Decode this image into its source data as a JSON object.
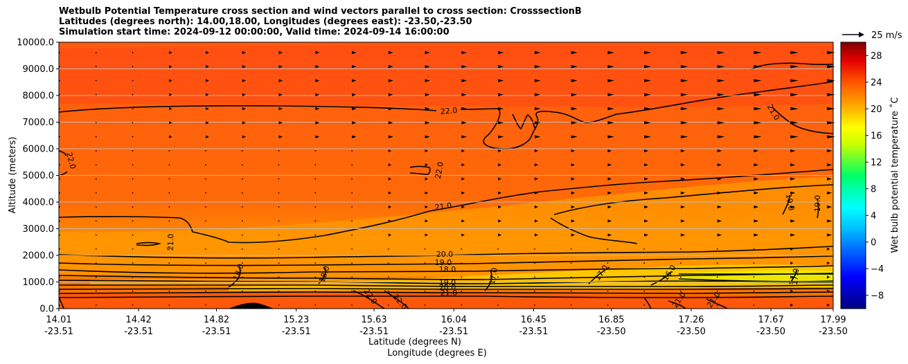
{
  "chart_data": {
    "type": "contour",
    "title": [
      "Wetbulb Potential Temperature cross section and wind vectors parallel to cross section: CrosssectionB",
      "Latitudes (degrees north): 14.00,18.00, Longitudes (degrees east): -23.50,-23.50",
      "Simulation start time: 2024-09-12 00:00:00, Valid time: 2024-09-14 16:00:00"
    ],
    "ylabel": "Altitude (meters)",
    "xlabel_lat": "Latitude (degrees N)",
    "xlabel_lon": "Longitude (degrees E)",
    "ylim": [
      0,
      10000
    ],
    "yticks": [
      "0.0",
      "1000.0",
      "2000.0",
      "3000.0",
      "4000.0",
      "5000.0",
      "6000.0",
      "7000.0",
      "8000.0",
      "9000.0",
      "10000.0"
    ],
    "xticks_lat": [
      "14.01",
      "14.42",
      "14.82",
      "15.23",
      "15.63",
      "16.04",
      "16.45",
      "16.85",
      "17.26",
      "17.67",
      "17.99"
    ],
    "xticks_lon": [
      "-23.51",
      "-23.51",
      "-23.51",
      "-23.51",
      "-23.51",
      "-23.51",
      "-23.51",
      "-23.50",
      "-23.50",
      "-23.50",
      "-23.50"
    ],
    "colorbar": {
      "label": "Wet bulb potential temperature ˚C",
      "ticks": [
        "−8",
        "−4",
        "0",
        "4",
        "8",
        "12",
        "16",
        "20",
        "24",
        "28"
      ],
      "range": [
        -10,
        30
      ]
    },
    "contour_labels": [
      "22.0",
      "22.0",
      "22.0",
      "21.0",
      "21.0",
      "21.0",
      "19.0",
      "19.0",
      "20.0",
      "19.0",
      "18.0",
      "18.0",
      "18.0",
      "17.0",
      "17.0",
      "16.0",
      "17.0",
      "19.0",
      "20.0",
      "21.0",
      "22.0",
      "22.0",
      "21.0",
      "21.0"
    ],
    "wind_reference": "25 m/s"
  }
}
